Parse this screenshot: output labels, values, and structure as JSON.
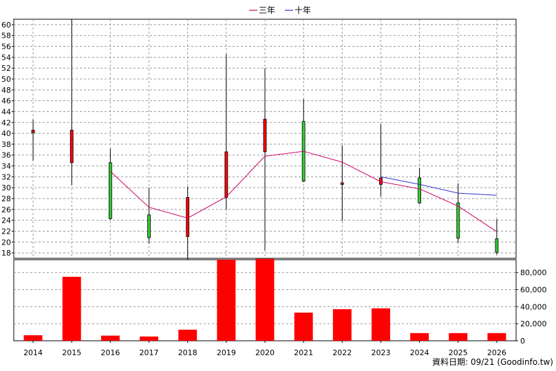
{
  "chart_data": {
    "type": "bar",
    "legend": {
      "placement": "top-center",
      "items": [
        {
          "label": "三年",
          "color": "#cc0066"
        },
        {
          "label": "十年",
          "color": "#3333cc"
        }
      ]
    },
    "categories": [
      "2014",
      "2015",
      "2016",
      "2017",
      "2018",
      "2019",
      "2020",
      "2021",
      "2022",
      "2023",
      "2024",
      "2025",
      "2026"
    ],
    "price": {
      "type": "candlestick",
      "ylim": [
        17,
        61
      ],
      "yticks": [
        18,
        20,
        22,
        24,
        26,
        28,
        30,
        32,
        34,
        36,
        38,
        40,
        42,
        44,
        46,
        48,
        50,
        52,
        54,
        56,
        58,
        60
      ],
      "grid": true,
      "candles": [
        {
          "open": 40.1,
          "close": 40.6,
          "high": 42.5,
          "low": 35.0
        },
        {
          "open": 34.6,
          "close": 40.6,
          "high": 61.0,
          "low": 30.5
        },
        {
          "open": 34.6,
          "close": 24.3,
          "high": 37.2,
          "low": 24.1
        },
        {
          "open": 25.0,
          "close": 20.8,
          "high": 30.0,
          "low": 19.7
        },
        {
          "open": 21.0,
          "close": 28.2,
          "high": 30.2,
          "low": 16.6
        },
        {
          "open": 28.2,
          "close": 36.6,
          "high": 54.6,
          "low": 26.0
        },
        {
          "open": 36.6,
          "close": 42.6,
          "high": 52.0,
          "low": 18.5
        },
        {
          "open": 42.2,
          "close": 31.2,
          "high": 46.3,
          "low": 31.0
        },
        {
          "open": 30.6,
          "close": 30.9,
          "high": 37.8,
          "low": 23.9
        },
        {
          "open": 30.6,
          "close": 31.8,
          "high": 41.7,
          "low": 28.4
        },
        {
          "open": 31.8,
          "close": 27.2,
          "high": 33.6,
          "low": 27.0
        },
        {
          "open": 27.2,
          "close": 20.7,
          "high": 30.8,
          "low": 19.9
        },
        {
          "open": 20.6,
          "close": 18.1,
          "high": 24.2,
          "low": 17.7
        }
      ],
      "series": [
        {
          "name": "三年",
          "color": "#cc0066",
          "values": [
            null,
            null,
            33.0,
            26.4,
            24.4,
            28.3,
            35.8,
            36.7,
            34.7,
            31.1,
            29.8,
            26.6,
            21.9
          ]
        },
        {
          "name": "十年",
          "color": "#3333cc",
          "values": [
            null,
            null,
            null,
            null,
            null,
            null,
            null,
            null,
            null,
            32.0,
            30.6,
            29.0,
            28.6
          ]
        }
      ],
      "up_color": "#ff0000",
      "down_color": "#33cc33"
    },
    "volume": {
      "ylim": [
        0,
        95000
      ],
      "yticks": [
        0,
        20000,
        40000,
        60000,
        80000
      ],
      "ytick_labels": [
        "0",
        "20,000",
        "40,000",
        "60,000",
        "80,000"
      ],
      "bar_color": "#ff0000",
      "values": [
        6500,
        75000,
        6000,
        5000,
        13000,
        95000,
        96000,
        33000,
        37000,
        38000,
        9000,
        9000,
        9000
      ]
    },
    "source_note": "資料日期: 09/21 (Goodinfo.tw)"
  }
}
